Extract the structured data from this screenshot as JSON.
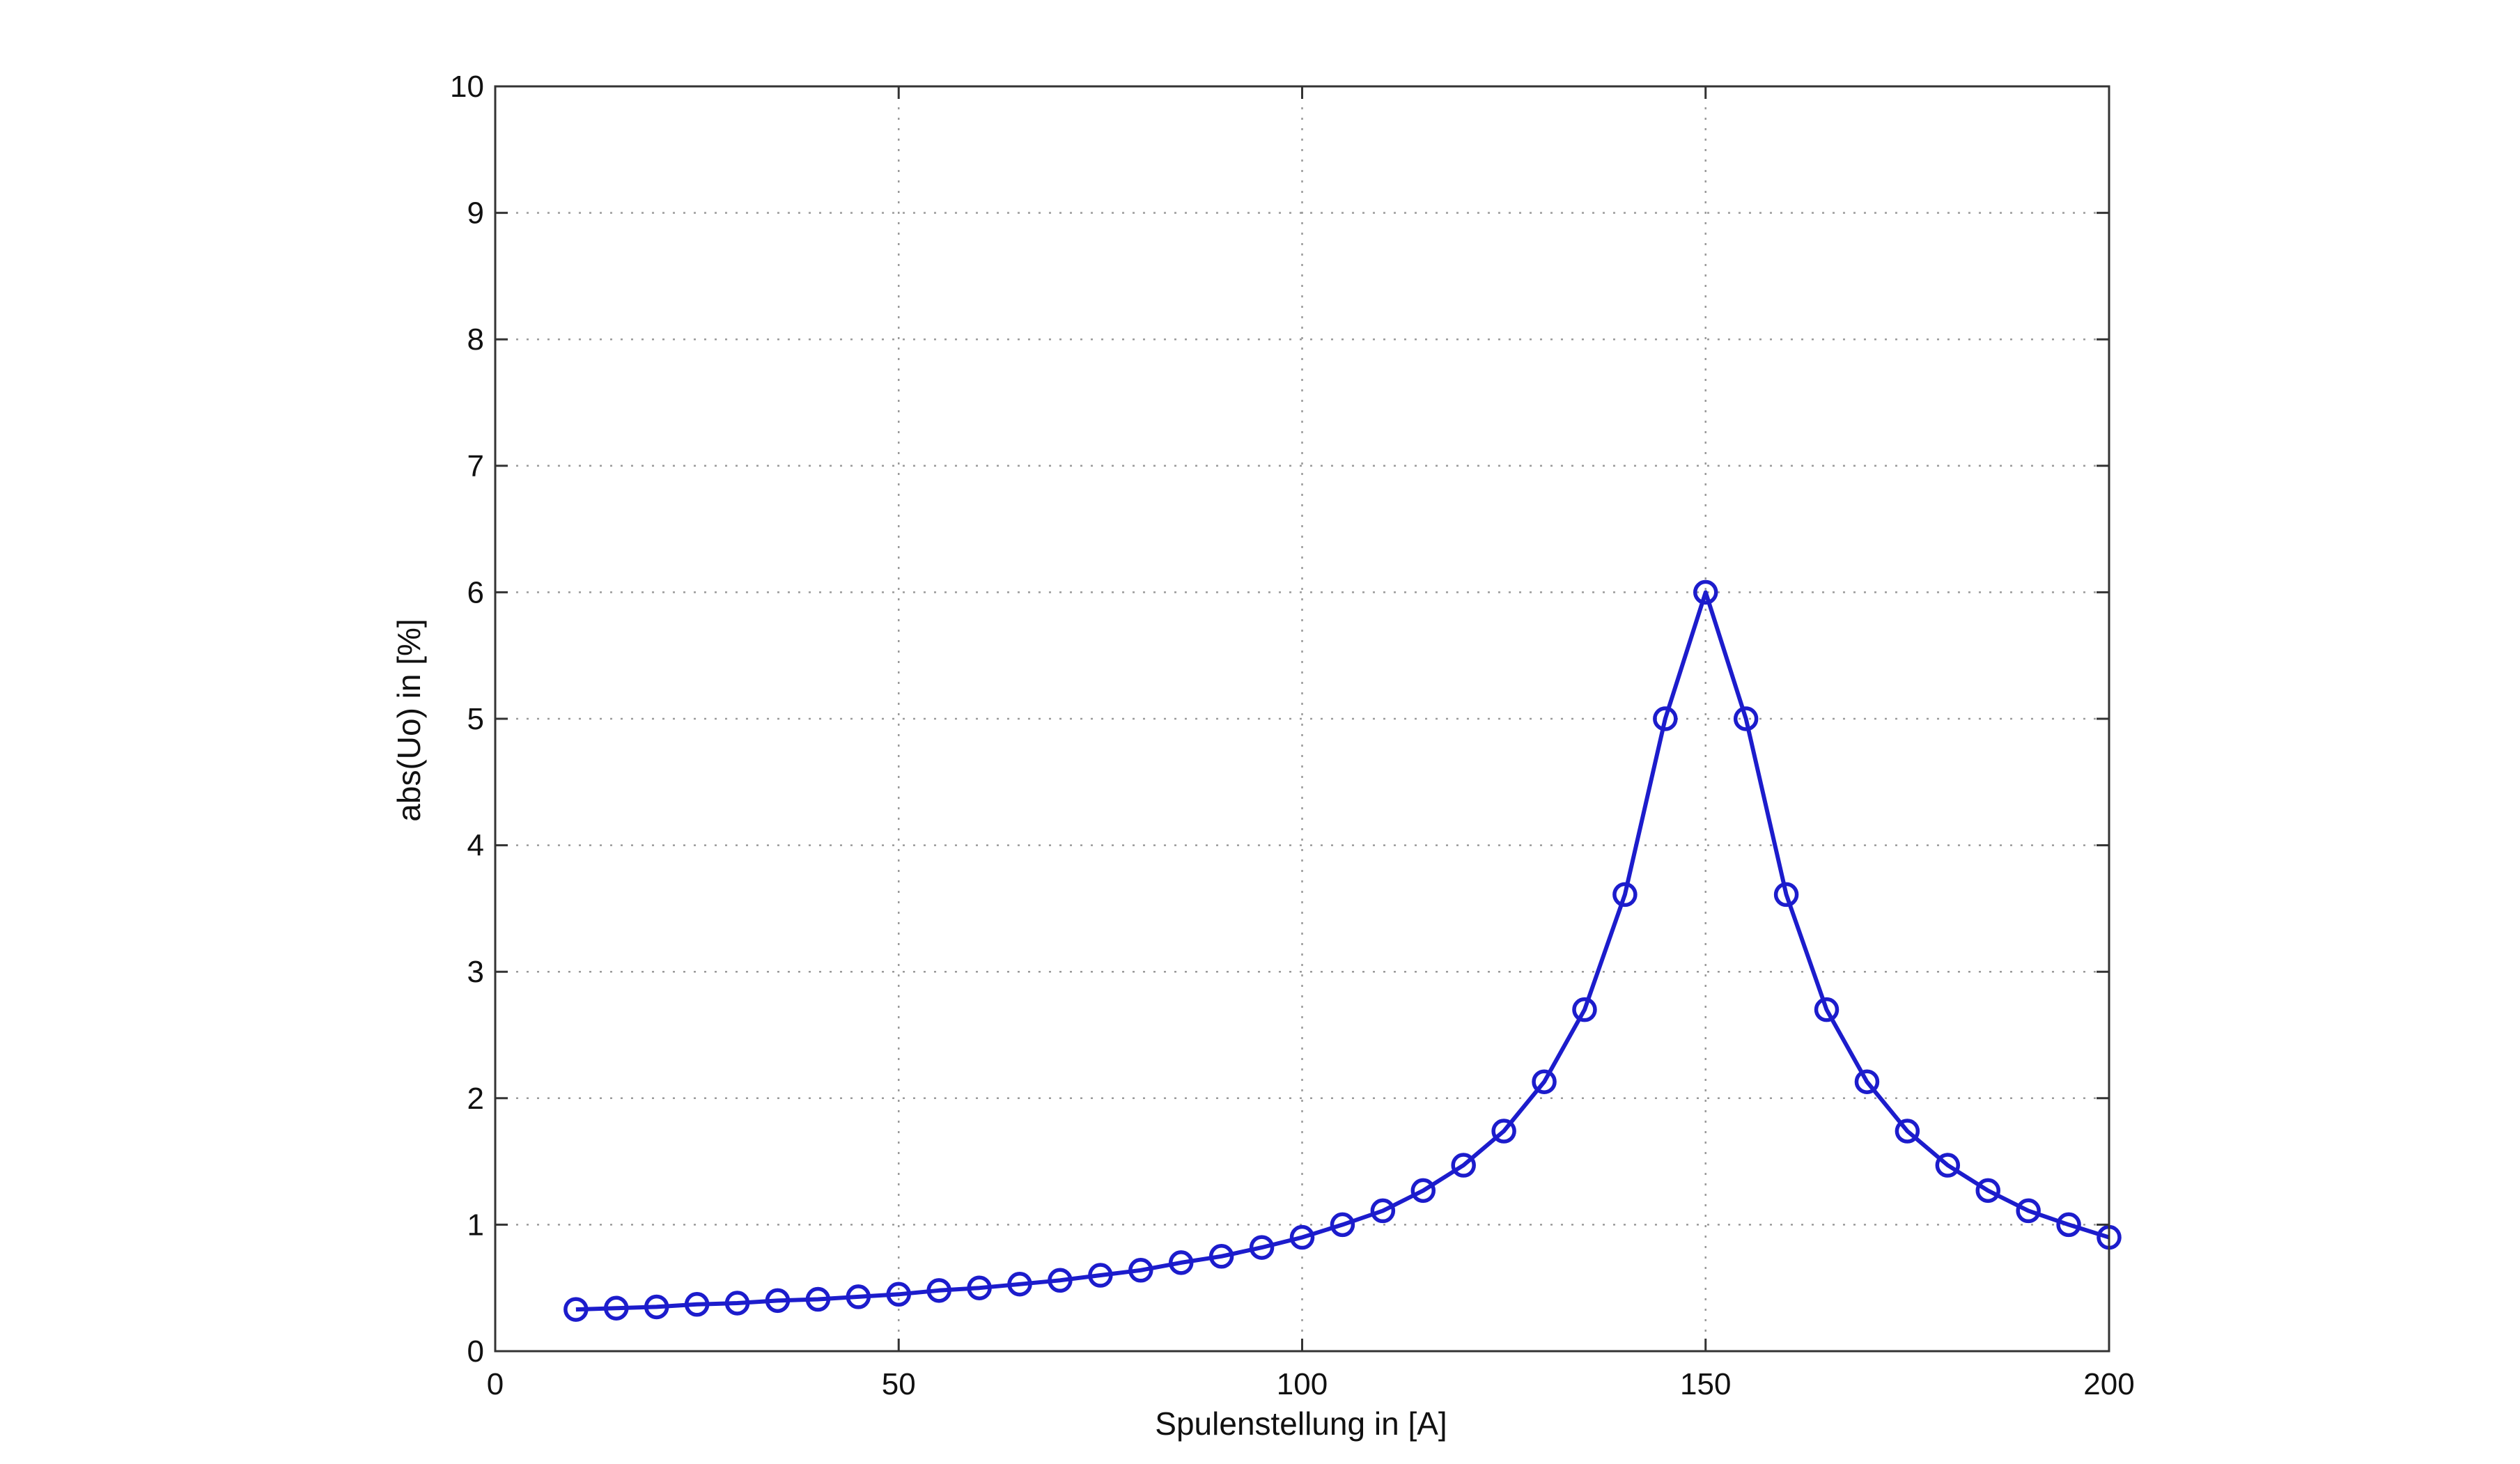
{
  "chart_data": {
    "type": "line",
    "title": "",
    "xlabel": "Spulenstellung in [A]",
    "ylabel": "abs(Uo) in [%]",
    "xlim": [
      0,
      200
    ],
    "ylim": [
      0,
      10
    ],
    "x_ticks": [
      "0",
      "50",
      "100",
      "150",
      "200"
    ],
    "y_ticks": [
      "0",
      "1",
      "2",
      "3",
      "4",
      "5",
      "6",
      "7",
      "8",
      "9",
      "10"
    ],
    "grid": true,
    "grid_style": "dotted",
    "marker": "circle",
    "color": "#1c1ccc",
    "series": [
      {
        "x": [
          10,
          15,
          20,
          25,
          30,
          35,
          40,
          45,
          50,
          55,
          60,
          65,
          70,
          75,
          80,
          85,
          90,
          95,
          100,
          105,
          110,
          115,
          120,
          125,
          130,
          135,
          140,
          145,
          150,
          155,
          160,
          165,
          170,
          175,
          180,
          185,
          190,
          195,
          200
        ],
        "y": [
          0.33,
          0.34,
          0.35,
          0.37,
          0.38,
          0.4,
          0.41,
          0.43,
          0.45,
          0.48,
          0.5,
          0.53,
          0.56,
          0.6,
          0.64,
          0.7,
          0.75,
          0.82,
          0.9,
          1.0,
          1.11,
          1.27,
          1.47,
          1.74,
          2.13,
          2.7,
          3.61,
          5.0,
          6.0,
          5.0,
          3.61,
          2.7,
          2.13,
          1.74,
          1.47,
          1.27,
          1.11,
          1.0,
          0.9
        ]
      }
    ]
  }
}
